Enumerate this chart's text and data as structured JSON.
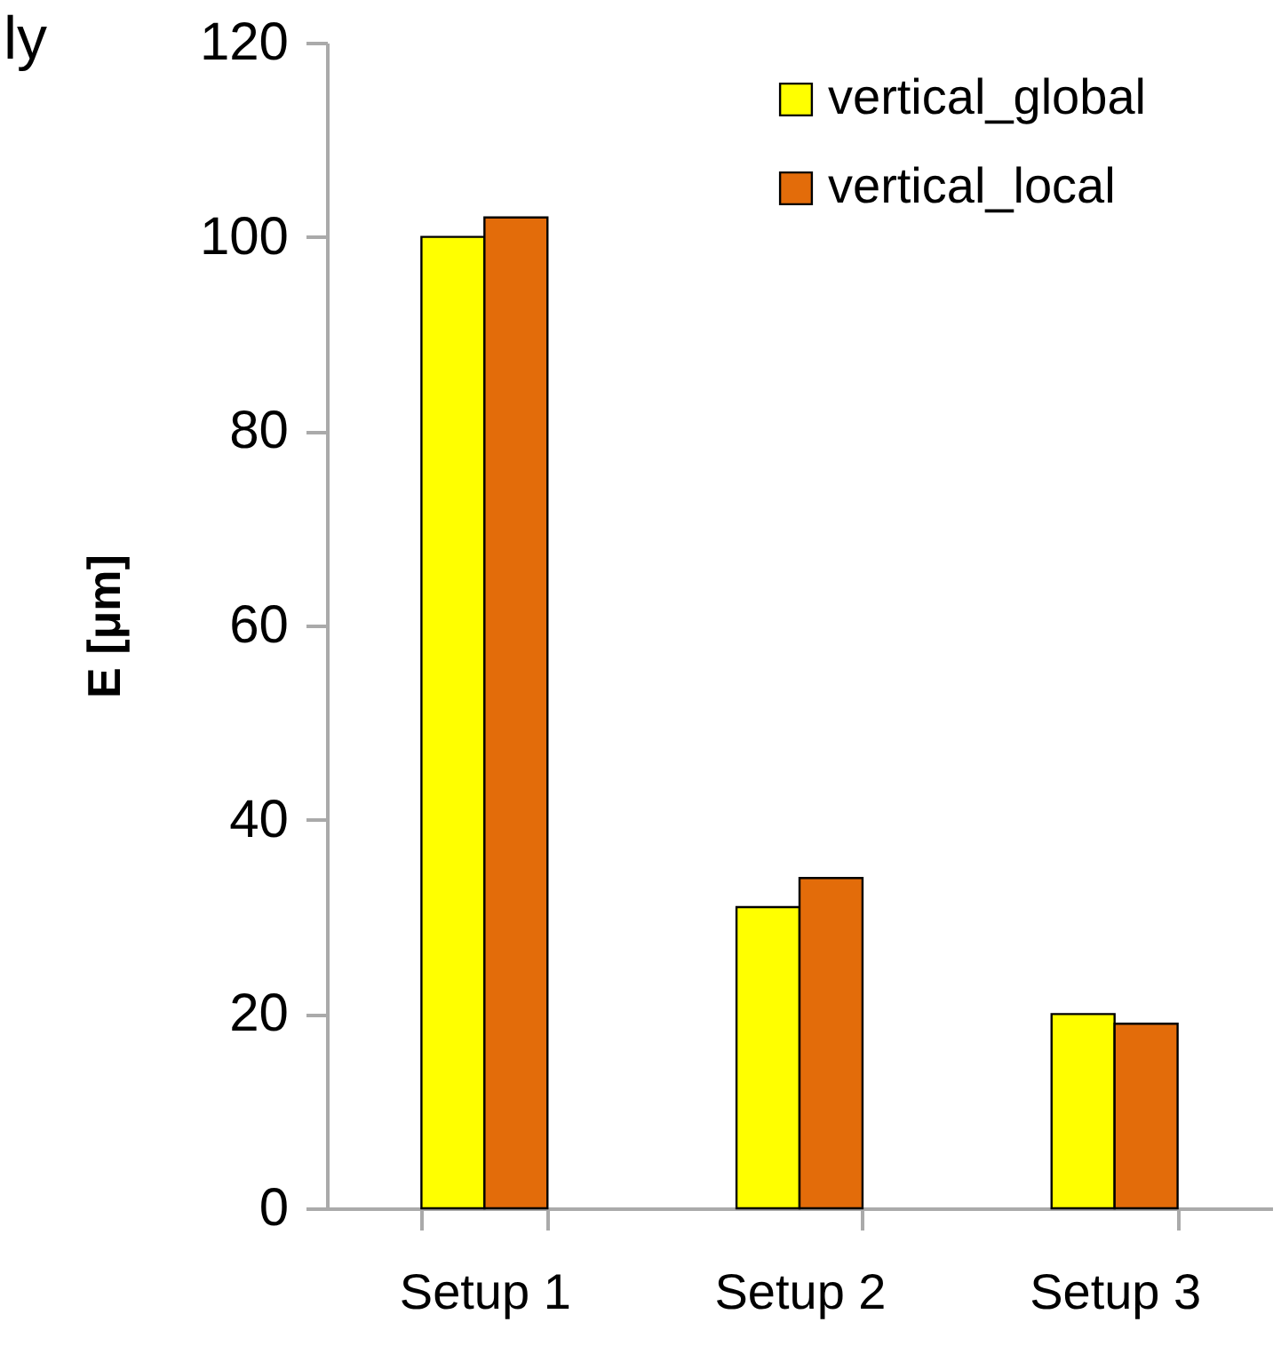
{
  "chart_data": {
    "type": "bar",
    "ylabel": "E [μm]",
    "annotations": [
      "ly"
    ],
    "categories": [
      "Setup 1",
      "Setup 2",
      "Setup 3"
    ],
    "series": [
      {
        "name": "vertical_global",
        "color": "#ffff00",
        "values": [
          100,
          31,
          20
        ]
      },
      {
        "name": "vertical_local",
        "color": "#e36c0a",
        "values": [
          102,
          34,
          19
        ]
      }
    ],
    "ylim": [
      0,
      120
    ],
    "yticks": [
      0,
      20,
      40,
      60,
      80,
      100,
      120
    ],
    "grid": false,
    "legend": "top right"
  }
}
